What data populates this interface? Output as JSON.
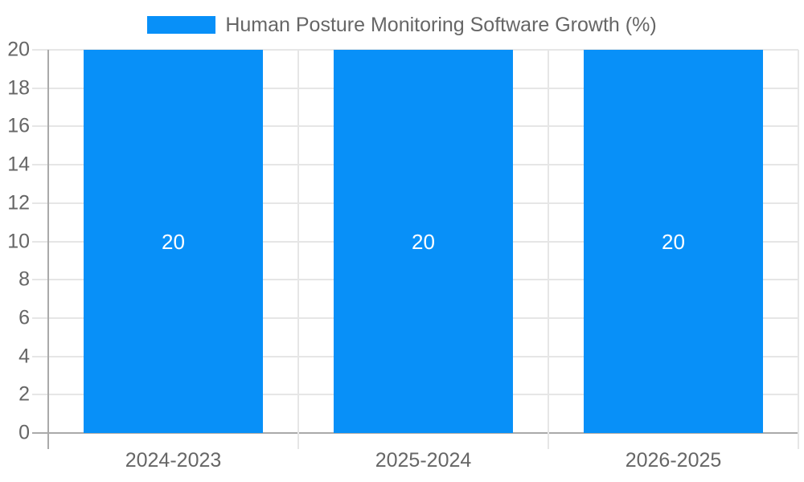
{
  "chart_data": {
    "type": "bar",
    "title": "",
    "categories": [
      "2024-2023",
      "2025-2024",
      "2026-2025"
    ],
    "series": [
      {
        "name": "Human Posture Monitoring Software Growth (%)",
        "values": [
          20,
          20,
          20
        ]
      }
    ],
    "bar_value_labels": [
      "20",
      "20",
      "20"
    ],
    "xlabel": "",
    "ylabel": "",
    "ylim": [
      0,
      20
    ],
    "yticks": [
      0,
      2,
      4,
      6,
      8,
      10,
      12,
      14,
      16,
      18,
      20
    ],
    "grid": true,
    "legend_position": "top",
    "colors": {
      "bar": "#0890f8",
      "grid_line": "#e6e6e6",
      "axis_line": "#aaaaaa",
      "label_text": "#666666",
      "bar_label_text": "#ffffff",
      "background": "#ffffff"
    }
  }
}
